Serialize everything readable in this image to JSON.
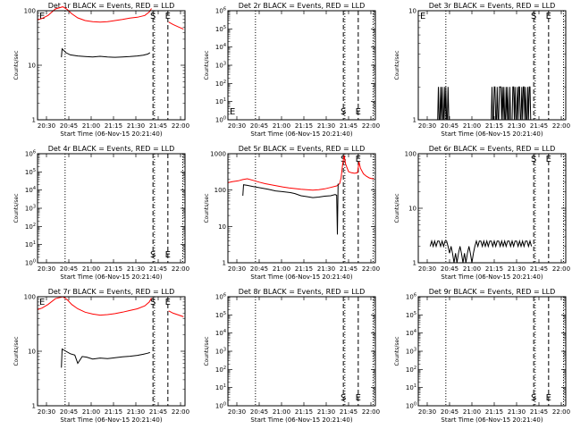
{
  "x_tick_labels": [
    "20:30",
    "20:45",
    "21:00",
    "21:15",
    "21:30",
    "21:45",
    "22:00"
  ],
  "x_axis_label": "Start Time (06-Nov-15 20:21:40)",
  "y_axis_label": "Counts/sec",
  "time_range_minutes": [
    23,
    122
  ],
  "colors": {
    "events": "#000000",
    "lld": "#ff0000"
  },
  "chart_data": [
    {
      "type": "line",
      "title": "Det 1r BLACK = Events, RED = LLD",
      "ylog": true,
      "ylim": [
        1,
        100
      ],
      "y_tick_labels": [
        "1",
        "10",
        "100"
      ],
      "markers": {
        "S": 100.5,
        "E": 110.5
      },
      "dotted_lines": [
        41.5,
        101.5
      ],
      "event_label_left": "E",
      "series": [
        {
          "role": "lld",
          "x": [
            23,
            26,
            30,
            35,
            40,
            43,
            46,
            50,
            55,
            60,
            65,
            70,
            75,
            80,
            85,
            90,
            95,
            98,
            99.5
          ],
          "y": [
            68,
            72,
            82,
            108,
            118,
            105,
            88,
            74,
            66,
            63,
            62,
            63,
            66,
            69,
            73,
            76,
            82,
            95,
            110
          ]
        },
        {
          "role": "events",
          "x": [
            39,
            39.5,
            42,
            45,
            50,
            55,
            60,
            65,
            70,
            75,
            80,
            85,
            90,
            94,
            97,
            98.5
          ],
          "y": [
            14,
            20,
            17,
            15.5,
            14.8,
            14.5,
            14.2,
            14.6,
            14.2,
            14.0,
            14.2,
            14.4,
            14.8,
            15.3,
            16,
            17
          ]
        },
        {
          "role": "lld",
          "x": [
            111,
            114,
            118,
            121
          ],
          "y": [
            62,
            56,
            50,
            46
          ]
        }
      ]
    },
    {
      "type": "line",
      "title": "Det 2r BLACK = Events, RED = LLD",
      "ylog": true,
      "ylim": [
        1,
        1000000
      ],
      "y_tick_labels": [
        "10^0",
        "10^1",
        "10^2",
        "10^3",
        "10^4",
        "10^5",
        "10^6"
      ],
      "markers": {
        "S": 100.5,
        "E": 110.5
      },
      "dotted_lines": [
        41.5,
        101.5,
        120.5
      ],
      "event_label_left": "E",
      "series": []
    },
    {
      "type": "line",
      "title": "Det 3r BLACK = Events, RED = LLD",
      "ylog": true,
      "ylim": [
        1,
        10
      ],
      "y_tick_labels": [
        "1",
        "10"
      ],
      "markers": {
        "S": 100.5,
        "E": 110.5
      },
      "dotted_lines": [
        41.5,
        101.5,
        120.5
      ],
      "event_label_left": "E",
      "series": [
        {
          "role": "events",
          "x": [
            36,
            36.5,
            37,
            37.5,
            38,
            38.5,
            39,
            39.5,
            40,
            40.5,
            41,
            41.5,
            42,
            42.5,
            43,
            43.5,
            44
          ],
          "y": [
            1,
            2,
            1,
            1,
            2,
            1,
            2,
            1,
            1,
            2,
            1,
            2,
            1,
            1,
            2,
            1,
            1
          ]
        },
        {
          "role": "events",
          "x": [
            72,
            72.5,
            73,
            73.5,
            74,
            74.5,
            75,
            75.5,
            76,
            76.5,
            77,
            77.5,
            78,
            78.5,
            79,
            79.5,
            80,
            80.5,
            81,
            81.5,
            82,
            82.5,
            83,
            83.5,
            84,
            84.5,
            85
          ],
          "y": [
            1,
            2,
            1,
            1,
            2,
            2,
            1,
            1,
            2,
            1,
            1,
            2,
            2,
            2,
            1,
            2,
            1,
            2,
            1,
            1,
            2,
            1,
            2,
            1,
            1,
            2,
            1
          ]
        },
        {
          "role": "events",
          "x": [
            86,
            86.5,
            87,
            87.5,
            88,
            88.5,
            89,
            89.5,
            90,
            90.5,
            91,
            91.5,
            92,
            92.5,
            93,
            93.5,
            94,
            94.5,
            95,
            95.5,
            96,
            96.5,
            97,
            97.5,
            98,
            98.5,
            99
          ],
          "y": [
            1,
            2,
            2,
            1,
            2,
            1,
            1,
            2,
            1,
            2,
            2,
            1,
            1,
            2,
            1,
            2,
            2,
            1,
            2,
            1,
            1,
            2,
            1,
            2,
            2,
            1,
            1
          ]
        }
      ]
    },
    {
      "type": "line",
      "title": "Det 4r BLACK = Events, RED = LLD",
      "ylog": true,
      "ylim": [
        1,
        1000000
      ],
      "y_tick_labels": [
        "10^0",
        "10^1",
        "10^2",
        "10^3",
        "10^4",
        "10^5",
        "10^6"
      ],
      "markers": {
        "S": 100.5,
        "E": 110.5
      },
      "dotted_lines": [
        41.5,
        101.5,
        120.5
      ],
      "event_label_left": "",
      "series": []
    },
    {
      "type": "line",
      "title": "Det 5r BLACK = Events, RED = LLD",
      "ylog": true,
      "ylim": [
        1,
        1000
      ],
      "y_tick_labels": [
        "1",
        "10",
        "100",
        "1000"
      ],
      "markers": {
        "S": 100.5,
        "E": 110.5
      },
      "dotted_lines": [
        41.5,
        101.5,
        120.5
      ],
      "event_label_left": "",
      "series": [
        {
          "role": "lld",
          "x": [
            23,
            26,
            30,
            33,
            36,
            40,
            44,
            48,
            52,
            56,
            60,
            64,
            68,
            72,
            76,
            80,
            84,
            88,
            92,
            96,
            98,
            99,
            100,
            101,
            102,
            104,
            106,
            108,
            110,
            111,
            112,
            114,
            116,
            118,
            121
          ],
          "y": [
            160,
            170,
            180,
            195,
            205,
            185,
            165,
            150,
            140,
            130,
            122,
            115,
            110,
            105,
            102,
            100,
            102,
            108,
            118,
            130,
            150,
            220,
            500,
            900,
            520,
            320,
            300,
            290,
            300,
            600,
            400,
            280,
            240,
            215,
            200
          ]
        },
        {
          "role": "events",
          "x": [
            33,
            33.5,
            36,
            40,
            45,
            50,
            55,
            60,
            65,
            68,
            72,
            76,
            80,
            84,
            88,
            92,
            95,
            96,
            96.5,
            97
          ],
          "y": [
            70,
            140,
            135,
            125,
            115,
            105,
            95,
            90,
            85,
            80,
            70,
            66,
            62,
            64,
            68,
            70,
            75,
            72,
            6,
            150
          ]
        }
      ]
    },
    {
      "type": "line",
      "title": "Det 6r BLACK = Events, RED = LLD",
      "ylog": true,
      "ylim": [
        1,
        100
      ],
      "y_tick_labels": [
        "1",
        "10",
        "100"
      ],
      "markers": {
        "S": 100.5,
        "E": 110.5
      },
      "dotted_lines": [
        41.5,
        101.5,
        120.5
      ],
      "event_label_left": "",
      "series": [
        {
          "role": "events",
          "x": [
            31,
            32,
            33,
            34,
            35,
            36,
            37,
            38,
            39,
            40,
            41,
            42,
            43,
            44,
            45,
            46,
            47,
            48,
            49,
            50,
            51,
            52,
            53,
            54,
            55,
            56,
            57,
            58,
            59,
            60,
            61,
            62,
            63,
            64,
            65,
            66,
            67,
            68,
            69,
            70,
            71,
            72,
            73,
            74,
            75,
            76,
            77,
            78,
            79,
            80,
            81,
            82,
            83,
            84,
            85,
            86,
            87,
            88,
            89,
            90,
            91,
            92,
            93,
            94,
            95,
            96,
            97,
            98,
            99
          ],
          "y": [
            2,
            2.5,
            2,
            2.5,
            2,
            2.5,
            2.5,
            2,
            2.5,
            2,
            2.5,
            2.5,
            2,
            1.5,
            2,
            1.5,
            1,
            1.5,
            1,
            1.5,
            2,
            1.5,
            1,
            1.5,
            1,
            1.5,
            2,
            1.5,
            1,
            1.5,
            2,
            2.5,
            2,
            2.5,
            2.5,
            2,
            2.5,
            2,
            2.5,
            2,
            2.5,
            2.5,
            2,
            2.5,
            2,
            2.5,
            2.5,
            2,
            2.5,
            2,
            2.5,
            2,
            2.5,
            2.5,
            2,
            2.5,
            2,
            2.5,
            2.5,
            2,
            2.5,
            2,
            2.5,
            2,
            2.5,
            2.5,
            2,
            2.5,
            2
          ]
        }
      ]
    },
    {
      "type": "line",
      "title": "Det 7r BLACK = Events, RED = LLD",
      "ylog": true,
      "ylim": [
        1,
        100
      ],
      "y_tick_labels": [
        "1",
        "10",
        "100"
      ],
      "markers": {
        "S": 100.5,
        "E": 110.5
      },
      "dotted_lines": [
        41.5,
        101.5
      ],
      "event_label_left": "E",
      "series": [
        {
          "role": "lld",
          "x": [
            23,
            26,
            30,
            35,
            40,
            43,
            46,
            50,
            55,
            60,
            65,
            70,
            75,
            80,
            85,
            90,
            95,
            98,
            99.5
          ],
          "y": [
            58,
            62,
            72,
            92,
            100,
            88,
            72,
            60,
            52,
            48,
            46,
            47,
            49,
            52,
            56,
            60,
            68,
            80,
            95
          ]
        },
        {
          "role": "events",
          "x": [
            39,
            39.5,
            42,
            45,
            48,
            50,
            53,
            56,
            60,
            65,
            70,
            75,
            80,
            85,
            90,
            94,
            97,
            98.5
          ],
          "y": [
            5,
            11,
            10,
            9,
            8.5,
            6,
            8,
            7.8,
            7.2,
            7.5,
            7.3,
            7.6,
            7.9,
            8.1,
            8.4,
            8.8,
            9.2,
            9.5
          ]
        },
        {
          "role": "lld",
          "x": [
            111,
            114,
            118,
            121
          ],
          "y": [
            55,
            50,
            46,
            43
          ]
        }
      ]
    },
    {
      "type": "line",
      "title": "Det 8r BLACK = Events, RED = LLD",
      "ylog": true,
      "ylim": [
        1,
        1000000
      ],
      "y_tick_labels": [
        "10^0",
        "10^1",
        "10^2",
        "10^3",
        "10^4",
        "10^5",
        "10^6"
      ],
      "markers": {
        "S": 100.5,
        "E": 110.5
      },
      "dotted_lines": [
        41.5,
        101.5,
        120.5
      ],
      "event_label_left": "",
      "series": []
    },
    {
      "type": "line",
      "title": "Det 9r BLACK = Events, RED = LLD",
      "ylog": true,
      "ylim": [
        1,
        1000000
      ],
      "y_tick_labels": [
        "10^0",
        "10^1",
        "10^2",
        "10^3",
        "10^4",
        "10^5",
        "10^6"
      ],
      "markers": {
        "S": 100.5,
        "E": 110.5
      },
      "dotted_lines": [
        41.5,
        101.5,
        120.5
      ],
      "event_label_left": "",
      "series": []
    }
  ]
}
